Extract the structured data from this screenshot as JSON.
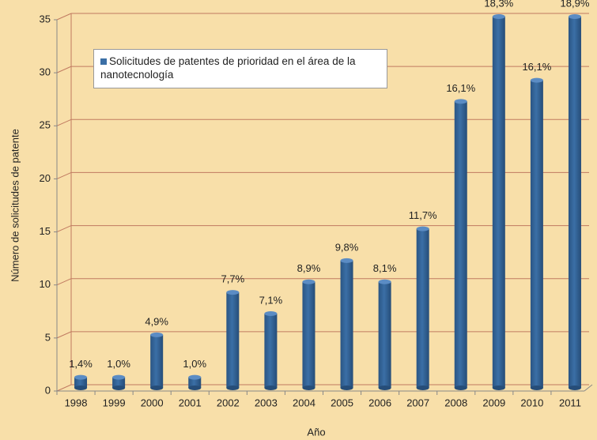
{
  "chart_data": {
    "type": "bar",
    "categories": [
      "1998",
      "1999",
      "2000",
      "2001",
      "2002",
      "2003",
      "2004",
      "2005",
      "2006",
      "2007",
      "2008",
      "2009",
      "2010",
      "2011"
    ],
    "series": [
      {
        "name": "Solicitudes de patentes de prioridad en el área de la nanotecnología",
        "color": "#3b6fa6",
        "values": [
          1,
          1,
          5,
          1,
          9,
          7,
          10,
          12,
          10,
          15,
          27,
          35,
          29,
          35
        ]
      }
    ],
    "annotations": [
      "1,4%",
      "1,0%",
      "4,9%",
      "1,0%",
      "7,7%",
      "7,1%",
      "8,9%",
      "9,8%",
      "8,1%",
      "11,7%",
      "16,1%",
      "18,3%",
      "16,1%",
      "18,9%"
    ],
    "ylim": [
      0,
      35
    ],
    "yticks": [
      0,
      5,
      10,
      15,
      20,
      25,
      30,
      35
    ],
    "grid": true,
    "ylabel": "Número de solicitudes de patente",
    "xlabel": "Año",
    "legend": "upper left"
  }
}
